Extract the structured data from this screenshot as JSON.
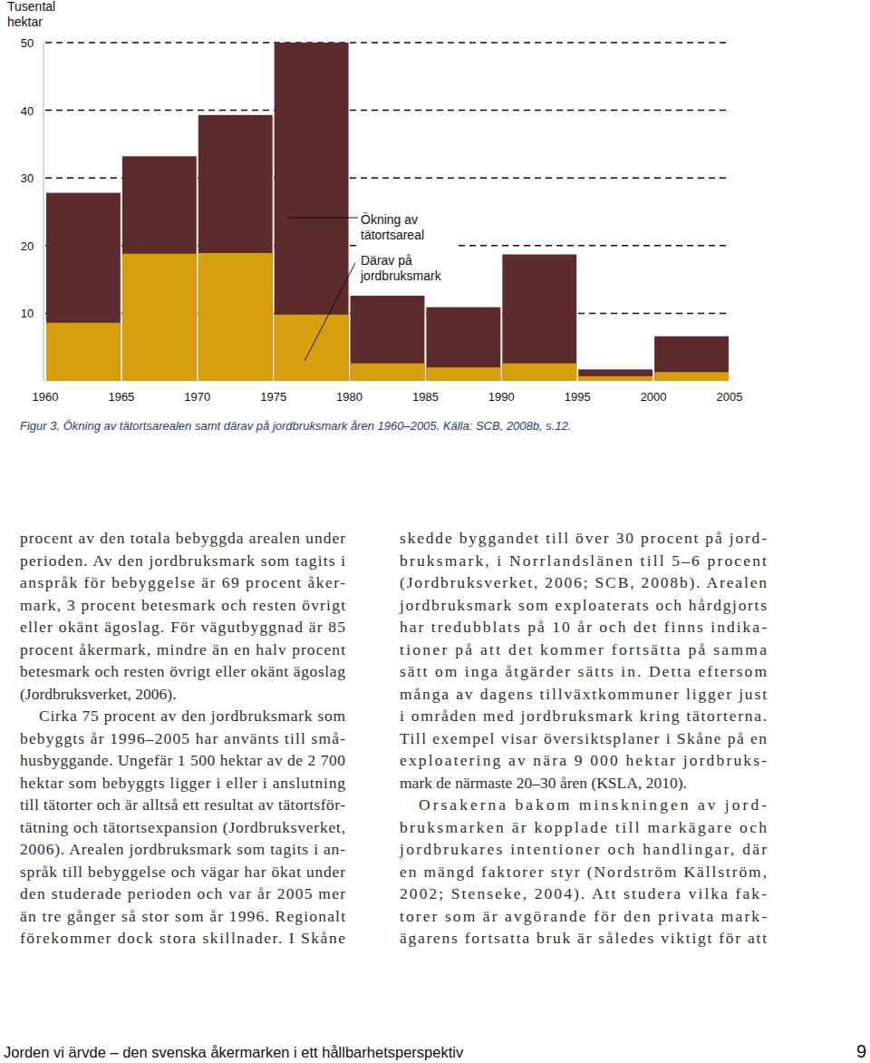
{
  "chart_data": {
    "type": "histogram",
    "ylabel": "Tusental hektar",
    "caption": "Figur 3. Ökning av tätortsarealen samt därav på jordbruksmark åren 1960–2005. Källa: SCB, 2008b, s.12.",
    "bins": [
      1960,
      1965,
      1970,
      1975,
      1980,
      1985,
      1990,
      1995,
      2000,
      2005
    ],
    "series": [
      {
        "name": "Ökning av tätortsareal",
        "color": "#5b2c2b",
        "values": [
          27.8,
          33.2,
          39.3,
          50,
          12.6,
          10.9,
          18.7,
          1.7,
          6.6
        ]
      },
      {
        "name": "Därav på jordbruksmark",
        "color": "#d5a00b",
        "values": [
          8.6,
          18.8,
          18.9,
          9.8,
          2.6,
          2.0,
          2.6,
          0.7,
          1.3
        ]
      }
    ],
    "xlim": [
      1960,
      2005
    ],
    "xticks": [
      1960,
      1965,
      1970,
      1975,
      1980,
      1985,
      1990,
      1995,
      2000,
      2005
    ],
    "ylim": [
      0,
      50
    ],
    "yticks": [
      10,
      20,
      30,
      40,
      50
    ],
    "grid": true,
    "stacked": false
  },
  "columns": [
    {
      "paragraphs": [
        {
          "lines": [
            "procent av den totala bebyggda arealen under",
            "perioden. Av den jordbruksmark som tagits i",
            "anspråk för bebyggelse är 69 procent åker-",
            "mark, 3 procent betesmark och resten övrigt",
            "eller okänt ägoslag. För vägutbyggnad är 85",
            "procent åkermark, mindre än en halv procent",
            "betesmark och resten övrigt eller okänt ägoslag",
            "(Jordbruksverket, 2006)."
          ]
        },
        {
          "lines": [
            "Cirka 75 procent av den jordbruksmark som",
            "bebyggts år 1996–2005 har använts till små-",
            "husbyggande. Ungefär 1 500 hektar av de 2 700",
            "hektar som bebyggts ligger i eller i anslutning",
            "till tätorter och är alltså ett resultat av tätortsför-",
            "tätning och tätortsexpansion (Jordbruksverket,",
            "2006). Arealen jordbruksmark som tagits i an-",
            "språk till bebyggelse och vägar har ökat under",
            "den studerade perioden och var år 2005 mer",
            "än tre gånger så stor som år 1996. Regionalt",
            "förekommer dock stora skillnader. I Skåne"
          ]
        }
      ]
    },
    {
      "paragraphs": [
        {
          "lines": [
            "skedde byggandet till över 30 procent på jord-",
            "bruksmark, i Norrlandslänen till 5–6 procent",
            "(Jordbruksverket, 2006; SCB, 2008b). Arealen",
            "jordbruksmark som exploaterats och hårdgjorts",
            "har tredubblats på 10 år och det finns indika-",
            "tioner på att det kommer fortsätta på samma",
            "sätt om inga åtgärder sätts in. Detta eftersom",
            "många av dagens tillväxtkommuner ligger just",
            "i områden med jordbruksmark kring tätorterna.",
            "Till exempel visar översiktsplaner i Skåne på en",
            "exploatering av nära 9 000 hektar jordbruks-",
            "mark de närmaste 20–30 åren (KSLA, 2010)."
          ]
        },
        {
          "lines": [
            "Orsakerna bakom minskningen av jord-",
            "bruksmarken är kopplade till markägare och",
            "jordbrukares intentioner och handlingar, där",
            "en mängd faktorer styr (Nordström Källström,",
            "2002; Stenseke, 2004). Att studera vilka fak-",
            "torer som är avgörande för den privata mark-",
            "ägarens fortsatta bruk är således viktigt för att"
          ]
        }
      ]
    }
  ],
  "footer": {
    "title": "Jorden vi ärvde – den svenska åkermarken i ett hållbarhetsperspektiv",
    "page": 9
  }
}
